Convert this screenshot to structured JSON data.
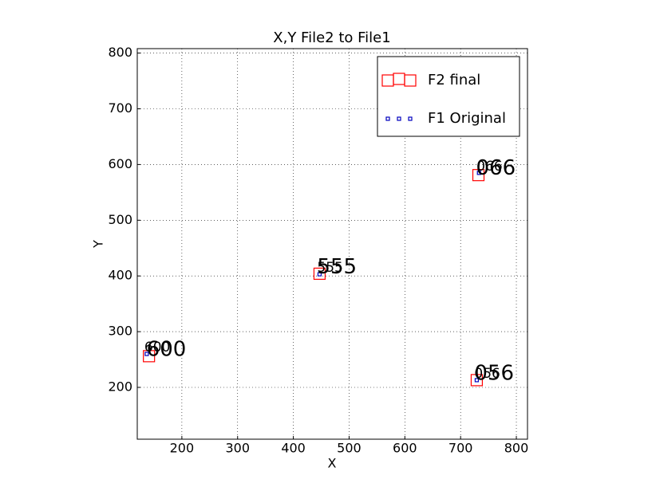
{
  "chart_data": {
    "type": "scatter",
    "title": "X,Y File2 to File1",
    "x_label": "X",
    "y_label": "Y",
    "xlim": [
      120,
      820
    ],
    "ylim": [
      107,
      808
    ],
    "xticks": [
      200,
      300,
      400,
      500,
      600,
      700,
      800
    ],
    "yticks": [
      200,
      300,
      400,
      500,
      600,
      700,
      800
    ],
    "grid": true,
    "legend": "upper right",
    "series": [
      {
        "name": "F2 final",
        "color": "#ff0000",
        "marker_size": 14,
        "label_size": 26,
        "x": [
          141,
          447,
          732,
          729
        ],
        "values": [
          256,
          404,
          581,
          213
        ],
        "labels": [
          "600",
          "555",
          "066",
          "056"
        ]
      },
      {
        "name": "F1 Original",
        "color": "#0000bf",
        "marker_size": 4,
        "label_size": 17,
        "x": [
          137,
          447,
          733,
          729
        ],
        "values": [
          260,
          403,
          585,
          213
        ],
        "labels": [
          "600",
          "555",
          "066",
          "056"
        ]
      }
    ]
  }
}
